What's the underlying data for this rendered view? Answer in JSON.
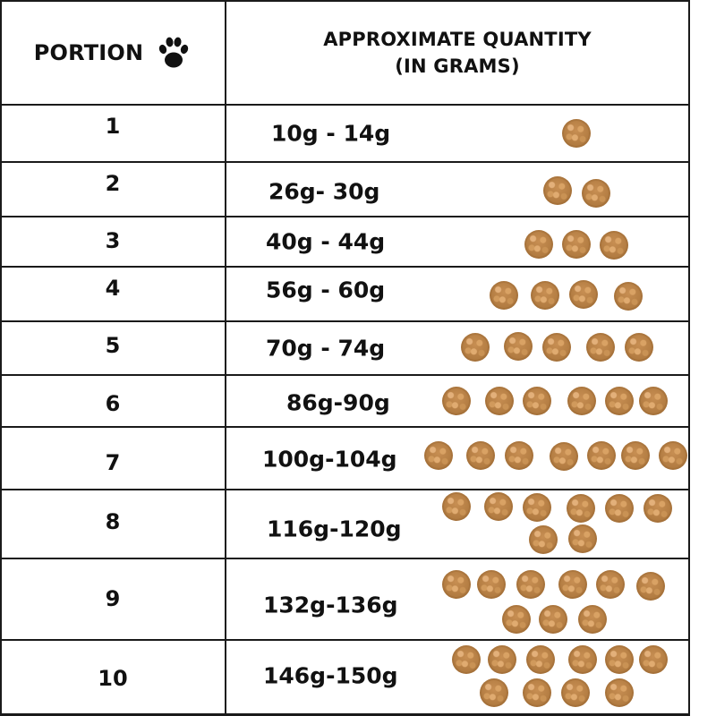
{
  "header": {
    "portion_label": "PORTION",
    "paw_icon": "paw-icon",
    "quantity_line1": "APPROXIMATE QUANTITY",
    "quantity_line2": "(IN GRAMS)"
  },
  "rows": [
    {
      "portion": "1",
      "quantity": "10g - 14g",
      "kibble_count": 1
    },
    {
      "portion": "2",
      "quantity": "26g- 30g",
      "kibble_count": 2
    },
    {
      "portion": "3",
      "quantity": "40g - 44g",
      "kibble_count": 3
    },
    {
      "portion": "4",
      "quantity": "56g - 60g",
      "kibble_count": 4
    },
    {
      "portion": "5",
      "quantity": "70g - 74g",
      "kibble_count": 5
    },
    {
      "portion": "6",
      "quantity": "86g-90g",
      "kibble_count": 6
    },
    {
      "portion": "7",
      "quantity": "100g-104g",
      "kibble_count": 7
    },
    {
      "portion": "8",
      "quantity": "116g-120g",
      "kibble_count": 8
    },
    {
      "portion": "9",
      "quantity": "132g-136g",
      "kibble_count": 9
    },
    {
      "portion": "10",
      "quantity": "146g-150g",
      "kibble_count": 10
    }
  ],
  "colors": {
    "border": "#1a1a1a",
    "kibble": "#b07a40"
  }
}
